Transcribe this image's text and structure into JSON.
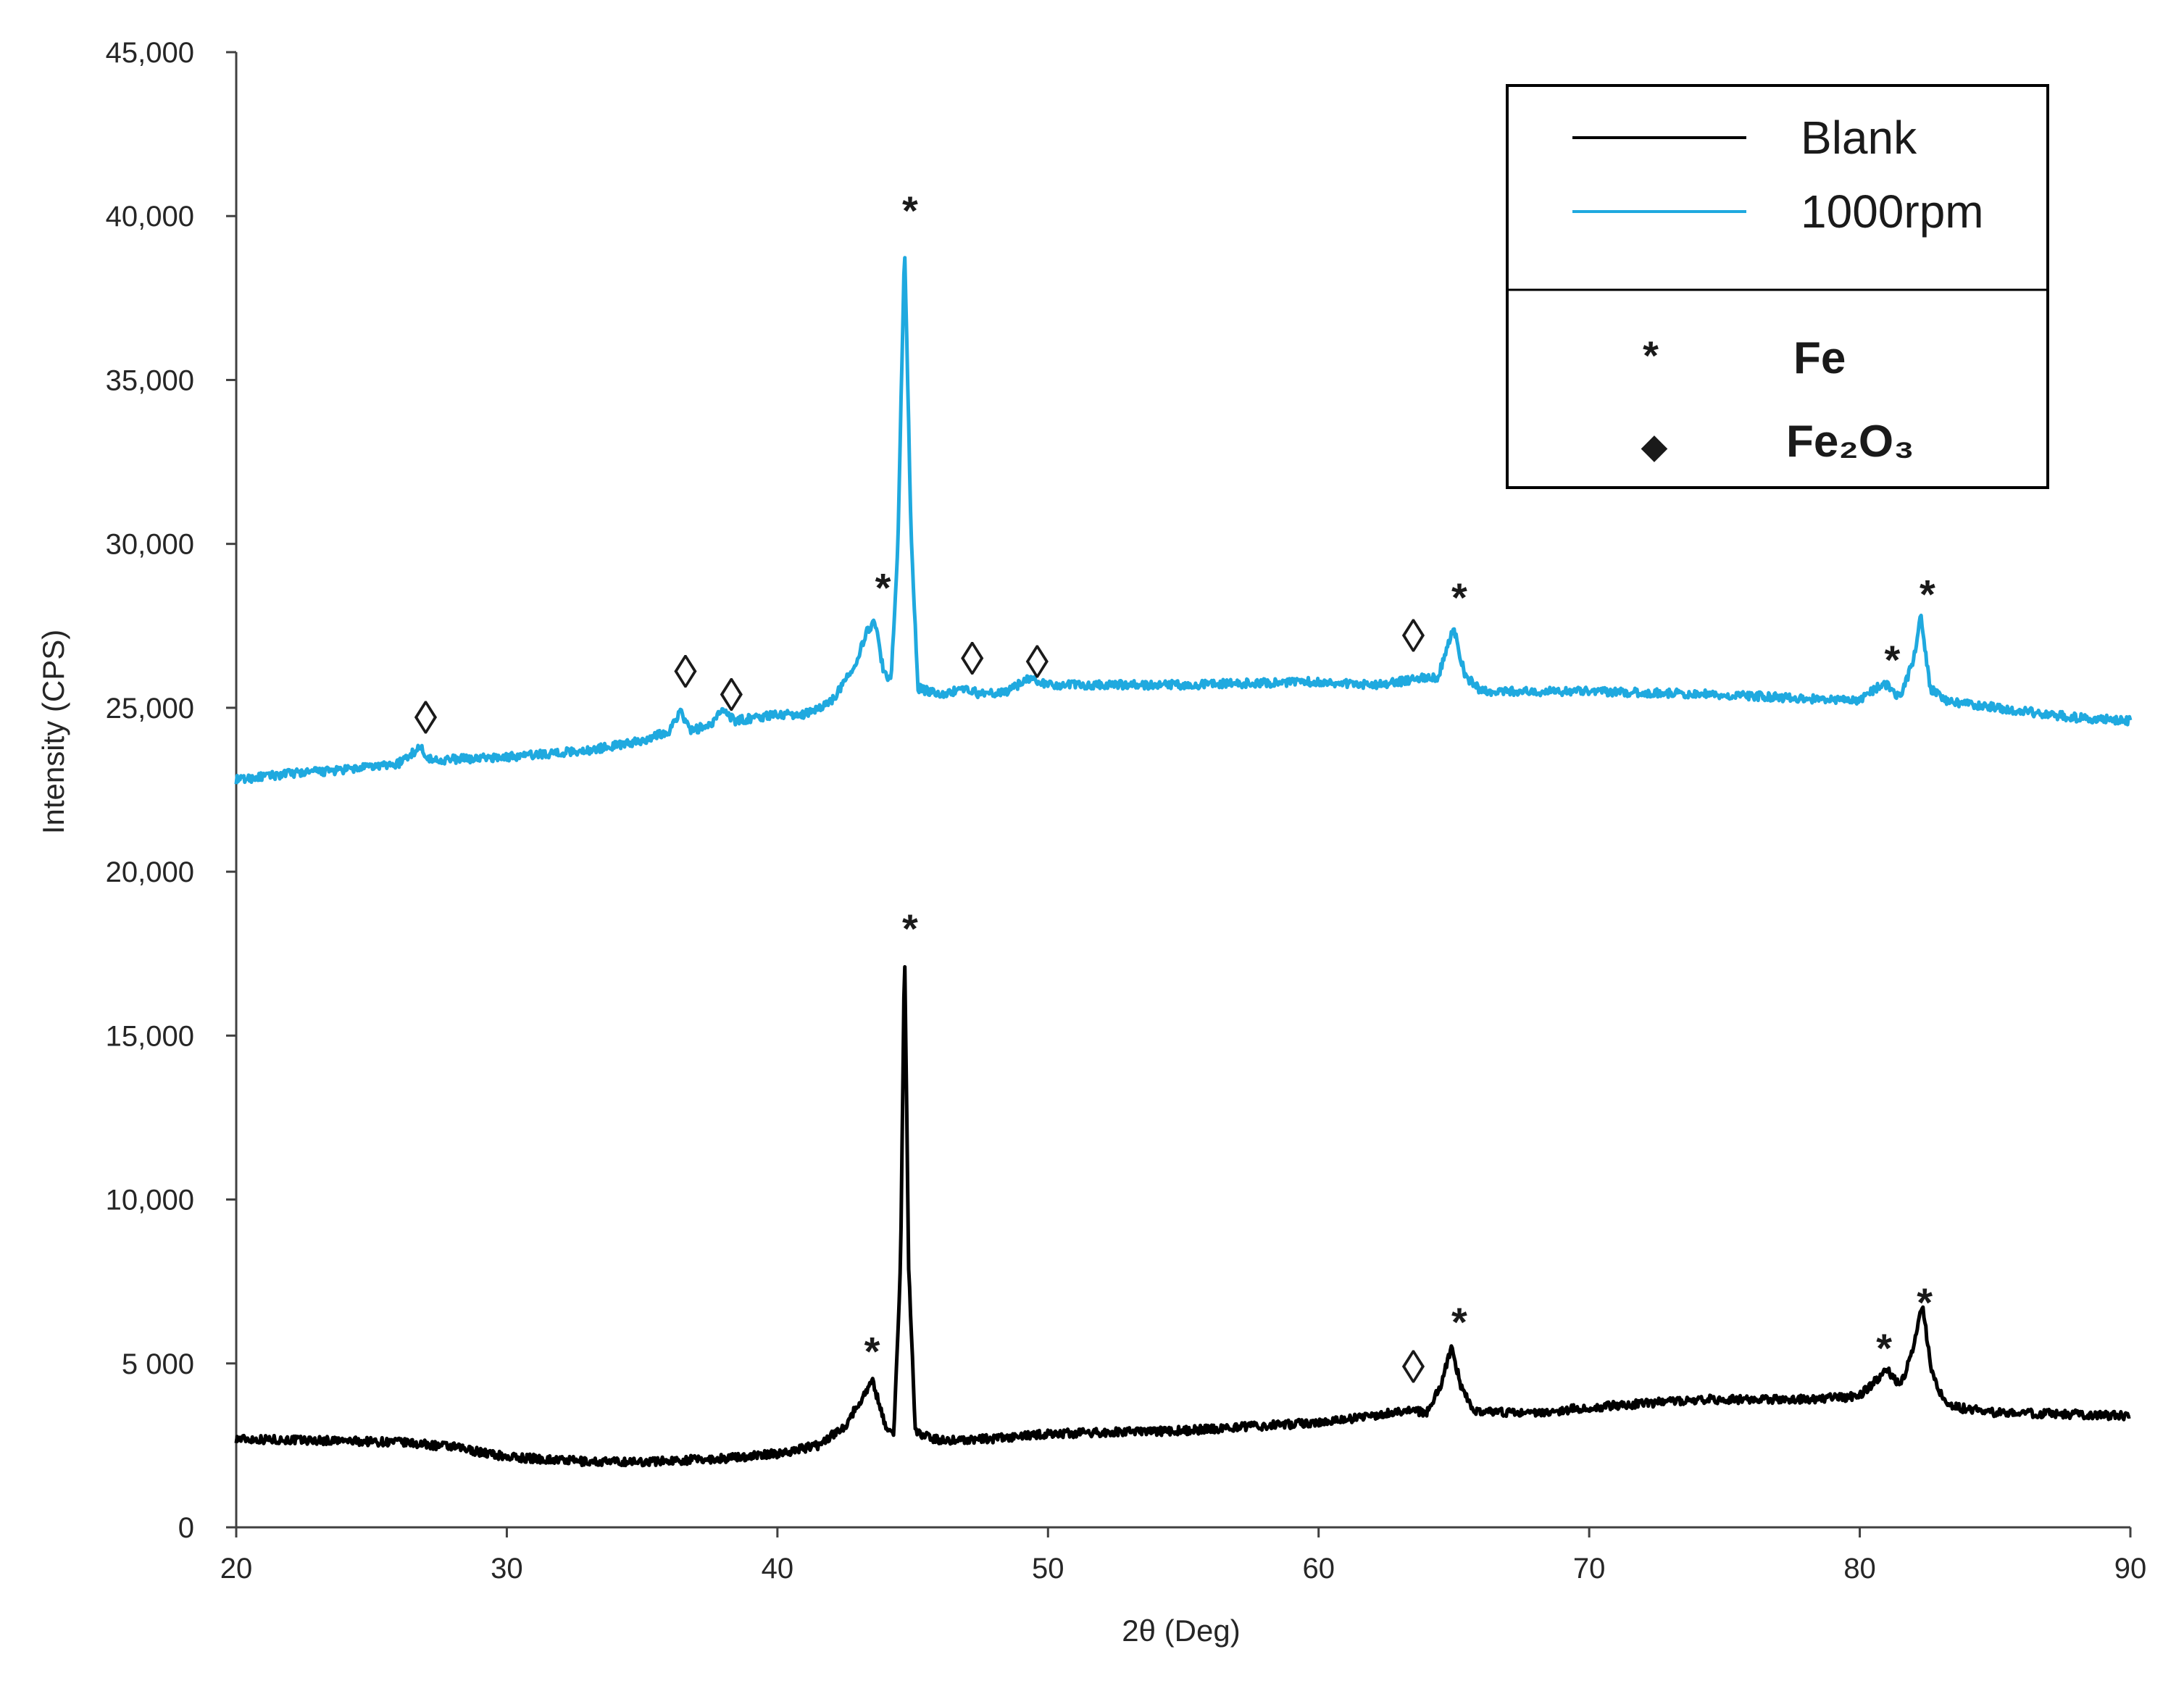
{
  "chart_data": {
    "type": "line",
    "xlabel": "2θ (Deg)",
    "ylabel": "Intensity (CPS)",
    "xlim": [
      20,
      90
    ],
    "ylim": [
      0,
      45000
    ],
    "x_ticks": [
      20,
      30,
      40,
      50,
      60,
      70,
      80,
      90
    ],
    "x_tick_labels": [
      "20",
      "30",
      "40",
      "50",
      "60",
      "70",
      "80",
      "90"
    ],
    "y_ticks": [
      0,
      5000,
      10000,
      15000,
      20000,
      25000,
      30000,
      35000,
      40000,
      45000
    ],
    "y_tick_labels": [
      "0",
      "5 000",
      "10,000",
      "15,000",
      "20,000",
      "25,000",
      "30,000",
      "35,000",
      "40,000",
      "45,000"
    ],
    "grid": false,
    "legend_position": "top-right",
    "series": [
      {
        "name": "Blank",
        "color": "#000000",
        "points": [
          [
            20,
            2700
          ],
          [
            23,
            2650
          ],
          [
            26,
            2600
          ],
          [
            28,
            2450
          ],
          [
            30,
            2150
          ],
          [
            33,
            2000
          ],
          [
            35,
            2000
          ],
          [
            38,
            2100
          ],
          [
            40,
            2250
          ],
          [
            41.5,
            2500
          ],
          [
            42.5,
            3100
          ],
          [
            43.1,
            3900
          ],
          [
            43.5,
            4500
          ],
          [
            44.0,
            3100
          ],
          [
            44.3,
            2800
          ],
          [
            44.55,
            8000
          ],
          [
            44.7,
            17700
          ],
          [
            44.85,
            8000
          ],
          [
            45.1,
            2900
          ],
          [
            46,
            2650
          ],
          [
            48,
            2700
          ],
          [
            50,
            2850
          ],
          [
            55,
            2950
          ],
          [
            60,
            3200
          ],
          [
            62,
            3400
          ],
          [
            63.3,
            3600
          ],
          [
            64.0,
            3500
          ],
          [
            64.5,
            4300
          ],
          [
            64.9,
            5500
          ],
          [
            65.3,
            4200
          ],
          [
            65.8,
            3500
          ],
          [
            68,
            3500
          ],
          [
            70,
            3650
          ],
          [
            74,
            3900
          ],
          [
            78,
            3900
          ],
          [
            80,
            4000
          ],
          [
            80.6,
            4500
          ],
          [
            81.0,
            4800
          ],
          [
            81.5,
            4300
          ],
          [
            82.0,
            5500
          ],
          [
            82.3,
            6800
          ],
          [
            82.7,
            4600
          ],
          [
            83.2,
            3700
          ],
          [
            85,
            3500
          ],
          [
            88,
            3450
          ],
          [
            90,
            3400
          ]
        ]
      },
      {
        "name": "1000rpm",
        "color": "#1fa9df",
        "points": [
          [
            20,
            22800
          ],
          [
            22,
            23000
          ],
          [
            24,
            23100
          ],
          [
            26,
            23300
          ],
          [
            26.8,
            23800
          ],
          [
            27.2,
            23400
          ],
          [
            30,
            23500
          ],
          [
            33,
            23700
          ],
          [
            35,
            24000
          ],
          [
            36.0,
            24300
          ],
          [
            36.4,
            24900
          ],
          [
            36.8,
            24300
          ],
          [
            37.6,
            24500
          ],
          [
            38.0,
            25000
          ],
          [
            38.4,
            24600
          ],
          [
            40,
            24800
          ],
          [
            41,
            24800
          ],
          [
            42,
            25200
          ],
          [
            42.8,
            26200
          ],
          [
            43.3,
            27300
          ],
          [
            43.6,
            27700
          ],
          [
            43.9,
            26200
          ],
          [
            44.2,
            25800
          ],
          [
            44.45,
            30000
          ],
          [
            44.7,
            39100
          ],
          [
            44.95,
            30000
          ],
          [
            45.2,
            25600
          ],
          [
            46,
            25400
          ],
          [
            47,
            25600
          ],
          [
            47.5,
            25400
          ],
          [
            48.5,
            25500
          ],
          [
            49.3,
            25900
          ],
          [
            50,
            25700
          ],
          [
            55,
            25700
          ],
          [
            60,
            25800
          ],
          [
            62,
            25700
          ],
          [
            63.0,
            25800
          ],
          [
            63.8,
            25900
          ],
          [
            64.4,
            25900
          ],
          [
            64.8,
            27000
          ],
          [
            65.0,
            27400
          ],
          [
            65.4,
            26000
          ],
          [
            66,
            25500
          ],
          [
            70,
            25500
          ],
          [
            75,
            25400
          ],
          [
            80,
            25200
          ],
          [
            80.6,
            25600
          ],
          [
            81.0,
            25700
          ],
          [
            81.5,
            25300
          ],
          [
            82.0,
            26500
          ],
          [
            82.25,
            27800
          ],
          [
            82.6,
            25600
          ],
          [
            83.2,
            25200
          ],
          [
            86,
            24900
          ],
          [
            88,
            24700
          ],
          [
            90,
            24600
          ]
        ]
      }
    ],
    "annotations": [
      {
        "symbol": "◊",
        "x": 27.0,
        "y": 24700
      },
      {
        "symbol": "◊",
        "x": 36.6,
        "y": 26100
      },
      {
        "symbol": "◊",
        "x": 38.3,
        "y": 25400
      },
      {
        "symbol": "*",
        "x": 43.9,
        "y": 28900
      },
      {
        "symbol": "*",
        "x": 44.9,
        "y": 40400
      },
      {
        "symbol": "◊",
        "x": 47.2,
        "y": 26500
      },
      {
        "symbol": "◊",
        "x": 49.6,
        "y": 26400
      },
      {
        "symbol": "◊",
        "x": 63.5,
        "y": 27200
      },
      {
        "symbol": "*",
        "x": 65.2,
        "y": 28600
      },
      {
        "symbol": "*",
        "x": 81.2,
        "y": 26700
      },
      {
        "symbol": "*",
        "x": 82.5,
        "y": 28700
      },
      {
        "symbol": "*",
        "x": 43.5,
        "y": 5600
      },
      {
        "symbol": "*",
        "x": 44.9,
        "y": 18500
      },
      {
        "symbol": "◊",
        "x": 63.5,
        "y": 4900
      },
      {
        "symbol": "*",
        "x": 65.2,
        "y": 6500
      },
      {
        "symbol": "*",
        "x": 80.9,
        "y": 5700
      },
      {
        "symbol": "*",
        "x": 82.4,
        "y": 7100
      }
    ],
    "phase_legend": [
      {
        "symbol": "*",
        "label": "Fe"
      },
      {
        "symbol": "◆",
        "label": "Fe₂O₃"
      }
    ]
  }
}
